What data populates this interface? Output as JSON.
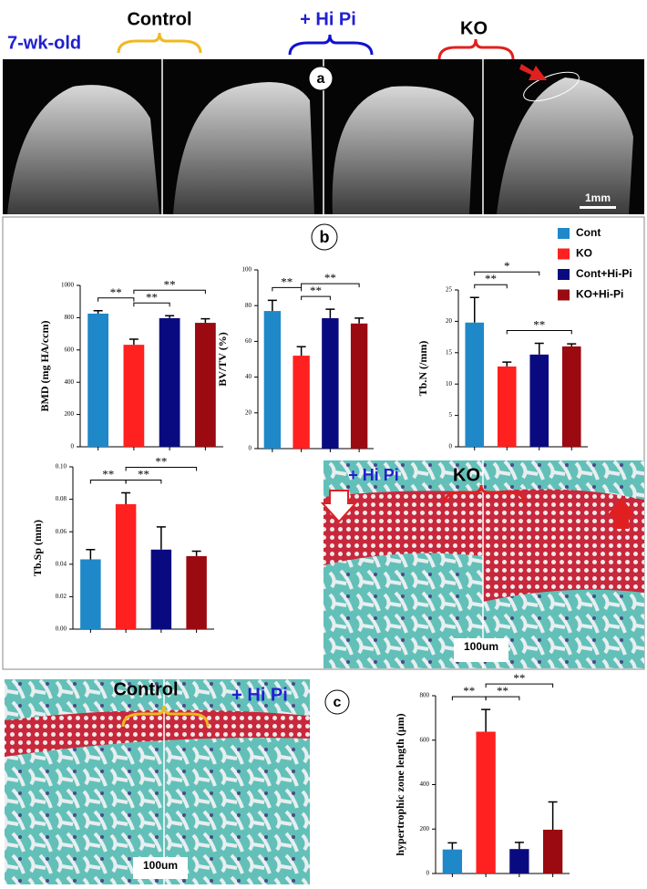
{
  "header": {
    "age": "7-wk-old",
    "groups": [
      "Control",
      "+ Hi Pi",
      "KO"
    ]
  },
  "panels": {
    "a": "a",
    "b": "b",
    "c": "c"
  },
  "scale_bars": {
    "ct": "1mm",
    "histology_ko": "100um",
    "histology_control": "100um"
  },
  "histology_ko": {
    "labels": [
      "+ Hi Pi",
      "KO"
    ]
  },
  "histology_control": {
    "labels": [
      "Control",
      "+ Hi Pi"
    ]
  },
  "legend": [
    {
      "name": "Cont",
      "color": "#1f88c8"
    },
    {
      "name": "KO",
      "color": "#ff2020"
    },
    {
      "name": "Cont+Hi-Pi",
      "color": "#0a0a80"
    },
    {
      "name": "KO+Hi-Pi",
      "color": "#9a0a10"
    }
  ],
  "chart_data": [
    {
      "type": "bar",
      "ylabel": "BMD (mg HA/ccm)",
      "values": [
        825,
        632,
        797,
        768
      ],
      "errors": [
        18,
        35,
        15,
        25
      ],
      "ylim": [
        0,
        1000
      ],
      "yticks": [
        0,
        200,
        400,
        600,
        800,
        1000
      ],
      "significance": [
        {
          "from": 0,
          "to": 1,
          "label": "**"
        },
        {
          "from": 1,
          "to": 2,
          "label": "**"
        },
        {
          "from": 1,
          "to": 3,
          "label": "**"
        }
      ]
    },
    {
      "type": "bar",
      "ylabel": "BV/TV (%)",
      "values": [
        77,
        52,
        73,
        70
      ],
      "errors": [
        6,
        5,
        5,
        3
      ],
      "ylim": [
        0,
        100
      ],
      "yticks": [
        0,
        20,
        40,
        60,
        80,
        100
      ],
      "significance": [
        {
          "from": 0,
          "to": 1,
          "label": "**"
        },
        {
          "from": 1,
          "to": 2,
          "label": "**"
        },
        {
          "from": 1,
          "to": 3,
          "label": "**"
        }
      ]
    },
    {
      "type": "bar",
      "ylabel": "Tb.N (/mm)",
      "values": [
        19.8,
        12.8,
        14.7,
        16.0
      ],
      "errors": [
        4,
        0.7,
        1.8,
        0.4
      ],
      "ylim": [
        0,
        25
      ],
      "yticks": [
        0,
        5,
        10,
        15,
        20,
        25
      ],
      "significance": [
        {
          "from": 0,
          "to": 1,
          "label": "**"
        },
        {
          "from": 0,
          "to": 2,
          "label": "*"
        },
        {
          "from": 1,
          "to": 3,
          "label": "**"
        }
      ]
    },
    {
      "type": "bar",
      "ylabel": "Tb.Sp (mm)",
      "values": [
        0.043,
        0.077,
        0.049,
        0.045
      ],
      "errors": [
        0.006,
        0.007,
        0.014,
        0.003
      ],
      "ylim": [
        0,
        0.1
      ],
      "yticks": [
        {
          "value": 0,
          "label": "0.00"
        },
        0.02,
        0.04,
        0.06,
        0.08,
        {
          "value": 0.1,
          "label": "0.10"
        }
      ],
      "significance": [
        {
          "from": 0,
          "to": 1,
          "label": "**"
        },
        {
          "from": 1,
          "to": 2,
          "label": "**"
        },
        {
          "from": 1,
          "to": 3,
          "label": "**"
        }
      ]
    },
    {
      "type": "bar",
      "ylabel": "hypertrophic zone length (μm)",
      "values": [
        108,
        638,
        110,
        197
      ],
      "errors": [
        30,
        100,
        30,
        125
      ],
      "ylim": [
        0,
        800
      ],
      "yticks": [
        0,
        200,
        400,
        600,
        800
      ],
      "significance": [
        {
          "from": 0,
          "to": 1,
          "label": "**"
        },
        {
          "from": 1,
          "to": 2,
          "label": "**"
        },
        {
          "from": 1,
          "to": 3,
          "label": "**"
        }
      ]
    }
  ]
}
